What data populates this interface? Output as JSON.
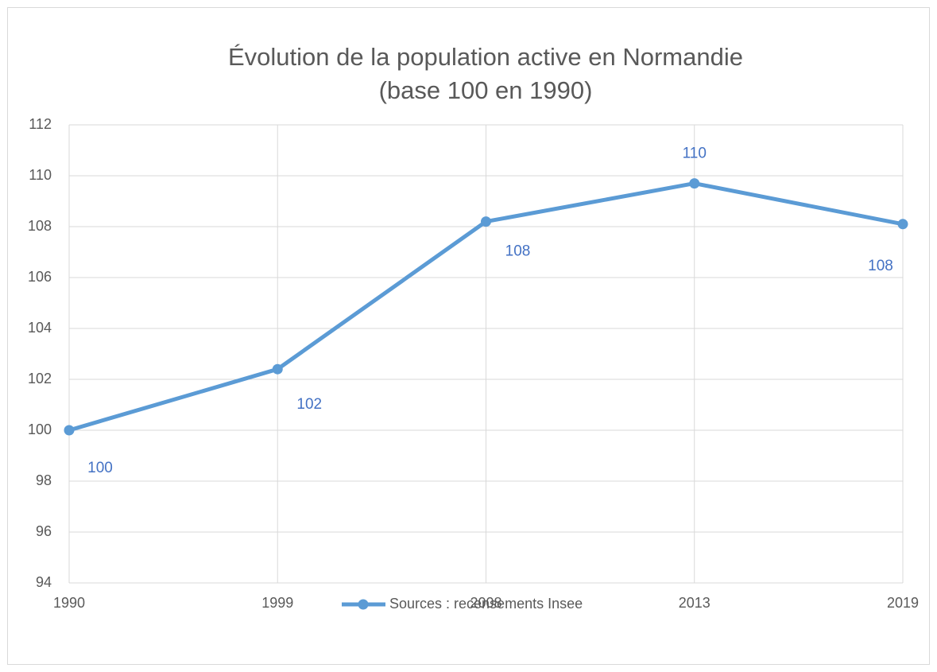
{
  "chart_data": {
    "type": "line",
    "title": "Évolution de la population active en Normandie",
    "subtitle": "(base 100 en 1990)",
    "categories": [
      "1990",
      "1999",
      "2008",
      "2013",
      "2019"
    ],
    "series": [
      {
        "name": "Sources : recensements Insee",
        "color": "#5b9bd5",
        "values": [
          100,
          102.4,
          108.2,
          109.7,
          108.1
        ],
        "value_labels": [
          "100",
          "102",
          "108",
          "110",
          "108"
        ],
        "label_color": "#4472c4"
      }
    ],
    "ylim": [
      94,
      112
    ],
    "yticks": [
      94,
      96,
      98,
      100,
      102,
      104,
      106,
      108,
      110,
      112
    ],
    "grid": true,
    "legend": "bottom"
  }
}
